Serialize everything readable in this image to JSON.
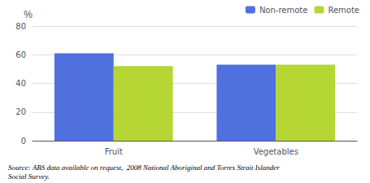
{
  "chart_data": {
    "type": "bar",
    "categories": [
      "Fruit",
      "Vegetables"
    ],
    "series": [
      {
        "name": "Non-remote",
        "values": [
          61,
          53
        ]
      },
      {
        "name": "Remote",
        "values": [
          52,
          53
        ]
      }
    ],
    "y_label": "%",
    "ylim": [
      0,
      80
    ],
    "yticks": [
      0,
      20,
      40,
      60,
      80
    ],
    "grid": true,
    "legend": "upper right",
    "annotations": [
      "Source: ABS data available on request,  2008 National Aboriginal and Torres Strait Islander",
      "Social Survey."
    ]
  }
}
